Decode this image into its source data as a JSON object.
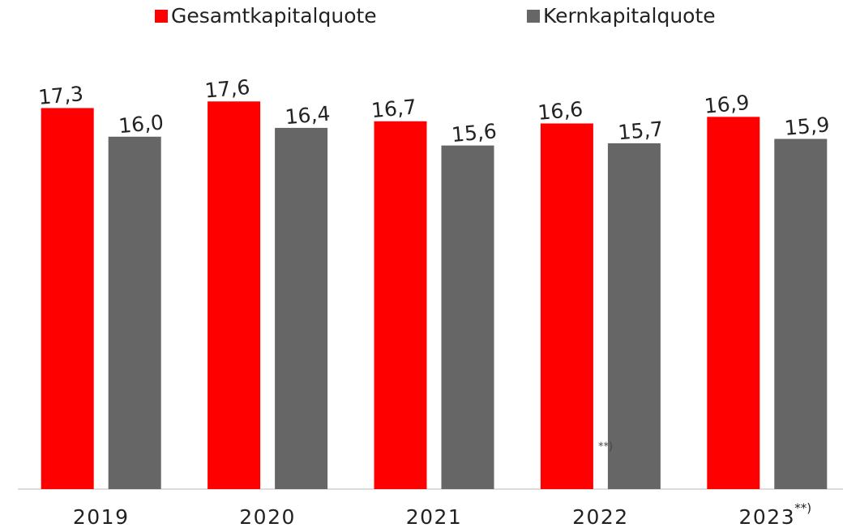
{
  "chart_data": {
    "type": "bar",
    "categories": [
      "2019",
      "2020",
      "2021",
      "2022",
      "2023"
    ],
    "series": [
      {
        "name": "Gesamtkapitalquote",
        "color": "#ff0000",
        "values": [
          17.3,
          17.6,
          16.7,
          16.6,
          16.9
        ],
        "value_labels": [
          "17,3",
          "17,6",
          "16,7",
          "16,6",
          "16,9"
        ]
      },
      {
        "name": "Kernkapitalquote",
        "color": "#666666",
        "values": [
          16.0,
          16.4,
          15.6,
          15.7,
          15.9
        ],
        "value_labels": [
          "16,0",
          "16,4",
          "15,6",
          "15,7",
          "15,9"
        ]
      }
    ],
    "annotations": [
      "**)",
      "**)"
    ],
    "ylim": [
      0,
      20
    ],
    "grid": false,
    "legend": "top"
  }
}
